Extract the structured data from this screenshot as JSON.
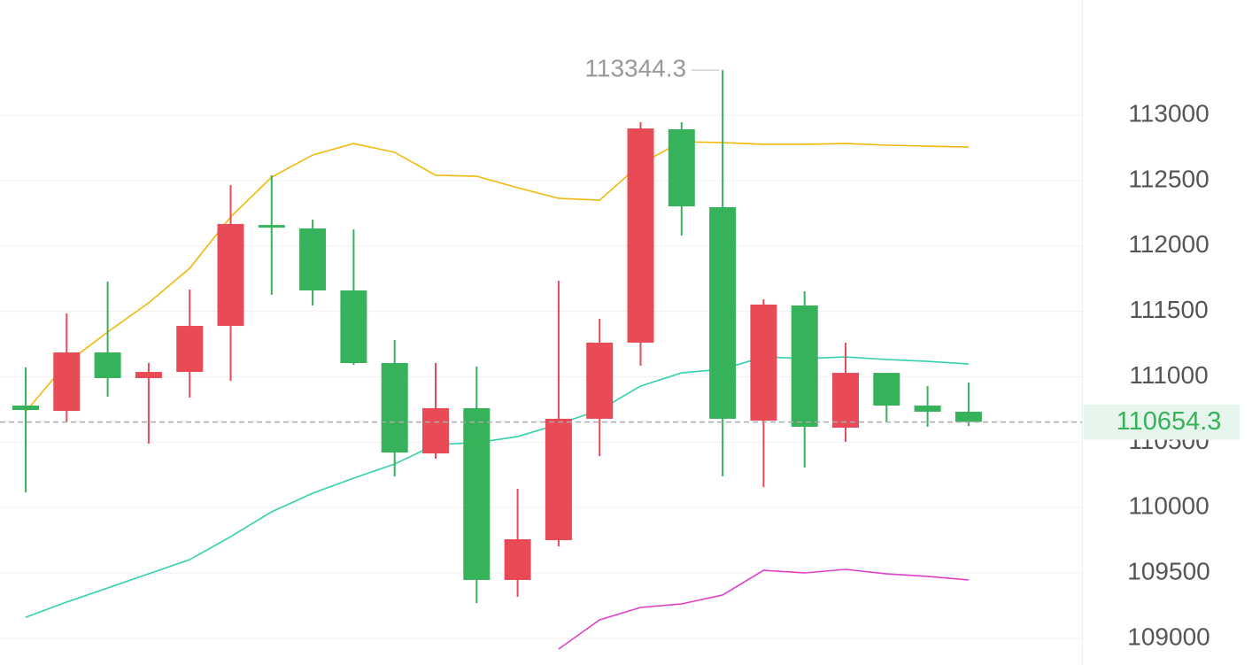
{
  "chart_data": {
    "type": "candlestick",
    "up_color": "#e84b55",
    "down_color": "#36b25a",
    "open": [
      110780,
      110739,
      111186,
      110990,
      111037,
      111389,
      112160,
      112134,
      111660,
      111105,
      110414,
      110760,
      109447,
      109751,
      110679,
      111261,
      112892,
      112296,
      110665,
      111545,
      110611,
      111030,
      110780,
      110733
    ],
    "high": [
      111071,
      111484,
      111728,
      111105,
      111667,
      112465,
      112540,
      112201,
      112127,
      111281,
      111105,
      111078,
      110144,
      111734,
      111443,
      112946,
      112946,
      113344.3,
      111592,
      111653,
      111261,
      111030,
      110929,
      110956
    ],
    "low": [
      110117,
      110651,
      110848,
      110489,
      110841,
      110970,
      111626,
      111545,
      111091,
      110239,
      110374,
      109271,
      109318,
      109704,
      110394,
      111085,
      112080,
      110239,
      110157,
      110306,
      110503,
      110651,
      110618,
      110624
    ],
    "close": [
      110746,
      111186,
      110990,
      111037,
      111389,
      112168,
      112140,
      111660,
      111105,
      110421,
      110760,
      109447,
      109758,
      110679,
      111261,
      112898,
      112303,
      110679,
      111552,
      110618,
      111030,
      110780,
      110733,
      110654.3
    ],
    "overlays": [
      {
        "color": "#f0b90b",
        "values": [
          110733,
          111105,
          111342,
          111565,
          111829,
          112222,
          112526,
          112695,
          112783,
          112716,
          112540,
          112533,
          112445,
          112364,
          112350,
          112628,
          112797,
          112790,
          112777,
          112777,
          112783,
          112770,
          112763,
          112756
        ]
      },
      {
        "color": "#33d1b0",
        "values": [
          109162,
          109278,
          109386,
          109494,
          109602,
          109778,
          109968,
          110110,
          110225,
          110333,
          110482,
          110496,
          110543,
          110638,
          110746,
          110929,
          111030,
          111058,
          111152,
          111139,
          111152,
          111132,
          111118,
          111098
        ]
      },
      {
        "color": "#e040c8",
        "values": [
          null,
          null,
          null,
          null,
          null,
          null,
          null,
          null,
          null,
          null,
          null,
          null,
          null,
          108919,
          109142,
          109237,
          109264,
          109332,
          109521,
          109501,
          109528,
          109494,
          109474,
          109447
        ]
      }
    ],
    "high_marker": 113344.3,
    "last_price": 110654.3,
    "ylim": [
      108797,
      113880
    ],
    "yticks": [
      109000,
      109500,
      110000,
      110500,
      111000,
      111500,
      112000,
      112500,
      113000
    ],
    "grid": true
  }
}
